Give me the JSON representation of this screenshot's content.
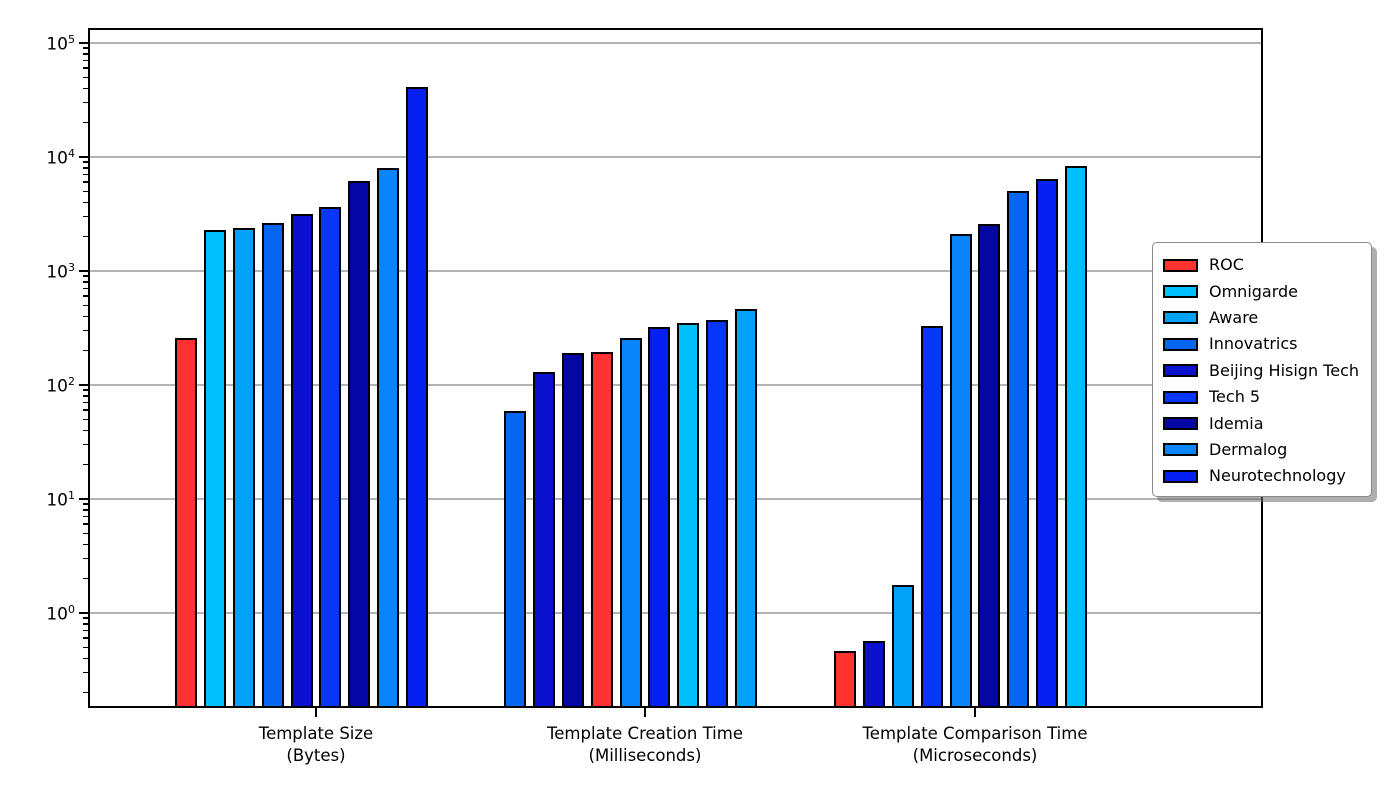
{
  "chart_data": {
    "type": "bar",
    "title": "",
    "xlabel": "",
    "ylabel": "",
    "yscale": "log",
    "ylim": [
      0.15,
      135000
    ],
    "ytick_exponents": [
      0,
      1,
      2,
      3,
      4,
      5
    ],
    "ytick_labels": [
      "10^0",
      "10^1",
      "10^2",
      "10^3",
      "10^4",
      "10^5"
    ],
    "grid": "horizontal-major-only",
    "legend_position": "center-right",
    "legend": [
      "ROC",
      "Omnigarde",
      "Aware",
      "Innovatrics",
      "Beijing Hisign Tech",
      "Tech 5",
      "Idemia",
      "Dermalog",
      "Neurotechnology"
    ],
    "colors": {
      "ROC": "#fe3231",
      "Omnigarde": "#00bfff",
      "Aware": "#02a2f8",
      "Innovatrics": "#0766f0",
      "Beijing Hisign Tech": "#0b11cf",
      "Tech 5": "#0636f8",
      "Idemia": "#0606a4",
      "Dermalog": "#0a84fa",
      "Neurotechnology": "#0520f0"
    },
    "groups": [
      {
        "label": "Template Size",
        "sublabel": "(Bytes)",
        "bars": [
          {
            "vendor": "ROC",
            "value": 258
          },
          {
            "vendor": "Omnigarde",
            "value": 2290
          },
          {
            "vendor": "Aware",
            "value": 2380
          },
          {
            "vendor": "Innovatrics",
            "value": 2640
          },
          {
            "vendor": "Beijing Hisign Tech",
            "value": 3160
          },
          {
            "vendor": "Tech 5",
            "value": 3650
          },
          {
            "vendor": "Idemia",
            "value": 6150
          },
          {
            "vendor": "Dermalog",
            "value": 8000
          },
          {
            "vendor": "Neurotechnology",
            "value": 41000
          }
        ]
      },
      {
        "label": "Template Creation Time",
        "sublabel": "(Milliseconds)",
        "bars": [
          {
            "vendor": "Innovatrics",
            "value": 59
          },
          {
            "vendor": "Beijing Hisign Tech",
            "value": 131
          },
          {
            "vendor": "Idemia",
            "value": 190
          },
          {
            "vendor": "ROC",
            "value": 196
          },
          {
            "vendor": "Dermalog",
            "value": 258
          },
          {
            "vendor": "Neurotechnology",
            "value": 323
          },
          {
            "vendor": "Omnigarde",
            "value": 350
          },
          {
            "vendor": "Tech 5",
            "value": 372
          },
          {
            "vendor": "Aware",
            "value": 464
          }
        ]
      },
      {
        "label": "Template Comparison Time",
        "sublabel": "(Microseconds)",
        "bars": [
          {
            "vendor": "ROC",
            "value": 0.46
          },
          {
            "vendor": "Beijing Hisign Tech",
            "value": 0.57
          },
          {
            "vendor": "Aware",
            "value": 1.75
          },
          {
            "vendor": "Tech 5",
            "value": 330
          },
          {
            "vendor": "Dermalog",
            "value": 2100
          },
          {
            "vendor": "Idemia",
            "value": 2600
          },
          {
            "vendor": "Innovatrics",
            "value": 5000
          },
          {
            "vendor": "Neurotechnology",
            "value": 6400
          },
          {
            "vendor": "Omnigarde",
            "value": 8350
          }
        ]
      }
    ]
  }
}
